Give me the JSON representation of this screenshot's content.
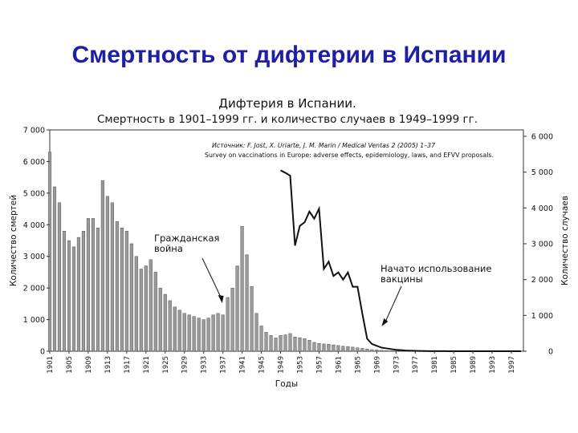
{
  "slide": {
    "title": "Смертность от дифтерии в Испании"
  },
  "chart_data": {
    "type": "bar",
    "title": "Дифтерия в Испании.",
    "subtitle": "Смертность в 1901–1999 гг. и количество случаев в 1949–1999 гг.",
    "source_line1": "Источник: F. Jost, X. Uriarte, J. M. Marin / Medical Ventas 2 (2005) 1–37",
    "source_line2": "Survey on vaccinations in Europe: adverse effects, epidemiology, laws, and EFVV proposals.",
    "xlabel": "Годы",
    "ylabel": "Количество смертей",
    "y2label": "Количество случаев",
    "ylim": [
      0,
      7000
    ],
    "y2lim": [
      0,
      6000
    ],
    "y_ticks": [
      "0",
      "1 000",
      "2 000",
      "3 000",
      "4 000",
      "5 000",
      "6 000",
      "7 000"
    ],
    "y2_ticks": [
      "0",
      "1 000",
      "2 000",
      "3 000",
      "4 000",
      "5 000",
      "6 000"
    ],
    "x_tick_labels": [
      "1901",
      "1905",
      "1909",
      "1913",
      "1917",
      "1921",
      "1925",
      "1929",
      "1933",
      "1937",
      "1941",
      "1945",
      "1949",
      "1953",
      "1957",
      "1961",
      "1965",
      "1969",
      "1973",
      "1977",
      "1981",
      "1985",
      "1989",
      "1993",
      "1997"
    ],
    "series": [
      {
        "axis": "left",
        "mark": "bar",
        "x": [
          1901,
          1902,
          1903,
          1904,
          1905,
          1906,
          1907,
          1908,
          1909,
          1910,
          1911,
          1912,
          1913,
          1914,
          1915,
          1916,
          1917,
          1918,
          1919,
          1920,
          1921,
          1922,
          1923,
          1924,
          1925,
          1926,
          1927,
          1928,
          1929,
          1930,
          1931,
          1932,
          1933,
          1934,
          1935,
          1936,
          1937,
          1938,
          1939,
          1940,
          1941,
          1942,
          1943,
          1944,
          1945,
          1946,
          1947,
          1948,
          1949,
          1950,
          1951,
          1952,
          1953,
          1954,
          1955,
          1956,
          1957,
          1958,
          1959,
          1960,
          1961,
          1962,
          1963,
          1964,
          1965,
          1966,
          1967,
          1968,
          1969,
          1970,
          1971,
          1972,
          1973,
          1974,
          1975,
          1976,
          1977,
          1978,
          1979,
          1980,
          1981,
          1982,
          1983,
          1984,
          1985,
          1986,
          1987,
          1988,
          1989,
          1990,
          1991,
          1992,
          1993,
          1994,
          1995,
          1996,
          1997,
          1998,
          1999
        ],
        "values": [
          6300,
          5200,
          4700,
          3800,
          3500,
          3300,
          3600,
          3800,
          4200,
          4200,
          3900,
          5400,
          4900,
          4700,
          4100,
          3900,
          3800,
          3400,
          3000,
          2600,
          2700,
          2900,
          2500,
          2000,
          1800,
          1600,
          1400,
          1300,
          1200,
          1150,
          1100,
          1050,
          1000,
          1050,
          1150,
          1200,
          1150,
          1700,
          2000,
          2700,
          3950,
          3050,
          2050,
          1200,
          800,
          600,
          500,
          420,
          500,
          520,
          560,
          450,
          430,
          400,
          350,
          280,
          250,
          230,
          220,
          200,
          180,
          160,
          150,
          130,
          110,
          90,
          70,
          50,
          40,
          30,
          20,
          15,
          12,
          10,
          8,
          6,
          5,
          4,
          3,
          3,
          2,
          2,
          2,
          1,
          1,
          1,
          1,
          1,
          0,
          0,
          0,
          0,
          0,
          0,
          0,
          0,
          0,
          0,
          0
        ]
      },
      {
        "axis": "right",
        "mark": "line",
        "x": [
          1949,
          1950,
          1951,
          1952,
          1953,
          1954,
          1955,
          1956,
          1957,
          1958,
          1959,
          1960,
          1961,
          1962,
          1963,
          1964,
          1965,
          1966,
          1967,
          1968,
          1969,
          1970,
          1971,
          1972,
          1973,
          1974,
          1975,
          1976,
          1977,
          1978,
          1979,
          1980,
          1981,
          1982,
          1983,
          1984,
          1985,
          1986,
          1987,
          1988,
          1989,
          1990,
          1991,
          1992,
          1993,
          1994,
          1995,
          1996,
          1997,
          1998,
          1999
        ],
        "values": [
          5050,
          4980,
          4900,
          2950,
          3500,
          3600,
          3900,
          3700,
          3980,
          2300,
          2500,
          2100,
          2200,
          2000,
          2200,
          1800,
          1800,
          1050,
          350,
          200,
          150,
          100,
          80,
          60,
          40,
          30,
          20,
          15,
          10,
          8,
          5,
          4,
          3,
          2,
          2,
          1,
          1,
          1,
          1,
          1,
          1,
          1,
          1,
          1,
          1,
          1,
          1,
          1,
          1,
          1,
          1
        ]
      }
    ],
    "annotations": [
      {
        "text_lines": [
          "Гражданская",
          "война"
        ],
        "points_to": 1937
      },
      {
        "text_lines": [
          "Начато использование",
          "вакцины"
        ],
        "points_to": 1969
      }
    ],
    "grid": false,
    "legend": "none"
  }
}
